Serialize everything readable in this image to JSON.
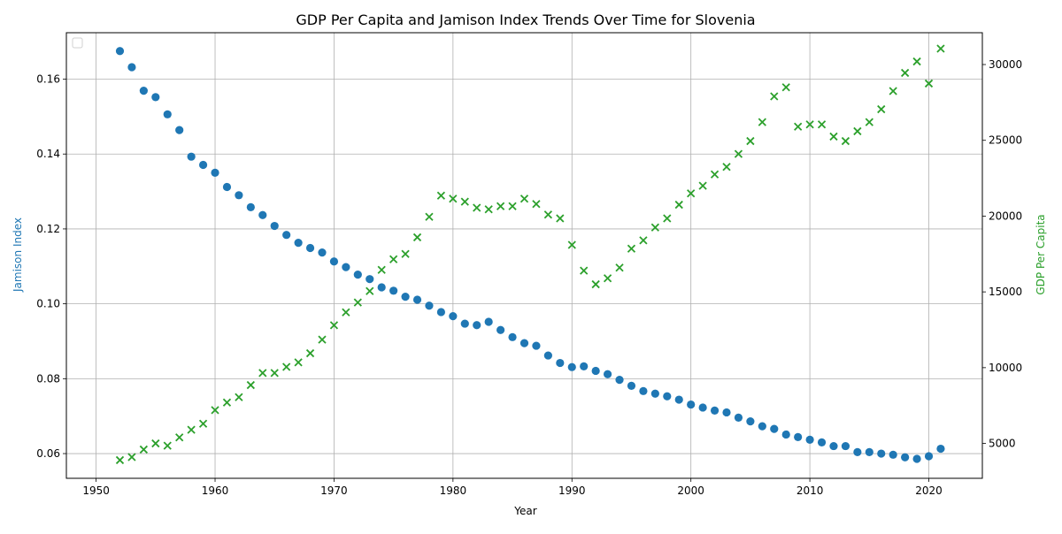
{
  "chart_data": {
    "type": "scatter",
    "title": "GDP Per Capita and Jamison Index Trends Over Time for Slovenia",
    "xlabel": "Year",
    "ylabel_left": "Jamison Index",
    "ylabel_right": "GDP Per Capita",
    "xlim": [
      1947.5,
      2024.5
    ],
    "ylim_left": [
      0.0534,
      0.1724
    ],
    "ylim_right": [
      2700,
      32100
    ],
    "x_ticks": [
      1950,
      1960,
      1970,
      1980,
      1990,
      2000,
      2010,
      2020
    ],
    "y_ticks_left": [
      0.06,
      0.08,
      0.1,
      0.12,
      0.14,
      0.16
    ],
    "y_ticks_right": [
      5000,
      10000,
      15000,
      20000,
      25000,
      30000
    ],
    "grid": true,
    "legend": "top-left (empty)",
    "colors": {
      "jamison": "#1f77b4",
      "gdp": "#2ca02c"
    },
    "x": [
      1952,
      1953,
      1954,
      1955,
      1956,
      1957,
      1958,
      1959,
      1960,
      1961,
      1962,
      1963,
      1964,
      1965,
      1966,
      1967,
      1968,
      1969,
      1970,
      1971,
      1972,
      1973,
      1974,
      1975,
      1976,
      1977,
      1978,
      1979,
      1980,
      1981,
      1982,
      1983,
      1984,
      1985,
      1986,
      1987,
      1988,
      1989,
      1990,
      1991,
      1992,
      1993,
      1994,
      1995,
      1996,
      1997,
      1998,
      1999,
      2000,
      2001,
      2002,
      2003,
      2004,
      2005,
      2006,
      2007,
      2008,
      2009,
      2010,
      2011,
      2012,
      2013,
      2014,
      2015,
      2016,
      2017,
      2018,
      2019,
      2020,
      2021
    ],
    "series": [
      {
        "marker": "circle",
        "axis": "left",
        "values": [
          0.1675,
          0.1632,
          0.1569,
          0.1552,
          0.1506,
          0.1464,
          0.1393,
          0.1371,
          0.135,
          0.1312,
          0.129,
          0.1258,
          0.1237,
          0.1208,
          0.1184,
          0.1163,
          0.1149,
          0.1137,
          0.1113,
          0.1098,
          0.1078,
          0.1066,
          0.1044,
          0.1035,
          0.1019,
          0.1011,
          0.0995,
          0.0978,
          0.0967,
          0.0947,
          0.0943,
          0.0952,
          0.093,
          0.0911,
          0.0895,
          0.0888,
          0.0862,
          0.0842,
          0.0831,
          0.0833,
          0.0821,
          0.0812,
          0.0797,
          0.0781,
          0.0767,
          0.076,
          0.0753,
          0.0744,
          0.0731,
          0.0723,
          0.0715,
          0.071,
          0.0696,
          0.0686,
          0.0673,
          0.0666,
          0.0651,
          0.0644,
          0.0637,
          0.063,
          0.062,
          0.062,
          0.0604,
          0.0604,
          0.06,
          0.0597,
          0.059,
          0.0586,
          0.0593,
          0.0613
        ]
      },
      {
        "marker": "x",
        "axis": "right",
        "values": [
          3900,
          4100,
          4600,
          5000,
          4850,
          5400,
          5900,
          6300,
          7200,
          7700,
          8050,
          8850,
          9650,
          9650,
          10050,
          10350,
          10950,
          11850,
          12800,
          13650,
          14300,
          15050,
          16450,
          17150,
          17500,
          18600,
          19950,
          21350,
          21150,
          20950,
          20550,
          20450,
          20650,
          20650,
          21150,
          20800,
          20100,
          19850,
          18100,
          16400,
          15500,
          15900,
          16600,
          17850,
          18400,
          19250,
          19850,
          20750,
          21500,
          22000,
          22750,
          23250,
          24100,
          24950,
          26200,
          27900,
          28500,
          25900,
          26050,
          26050,
          25250,
          24950,
          25600,
          26200,
          27050,
          28250,
          29450,
          30200,
          28750,
          31050
        ]
      }
    ]
  }
}
